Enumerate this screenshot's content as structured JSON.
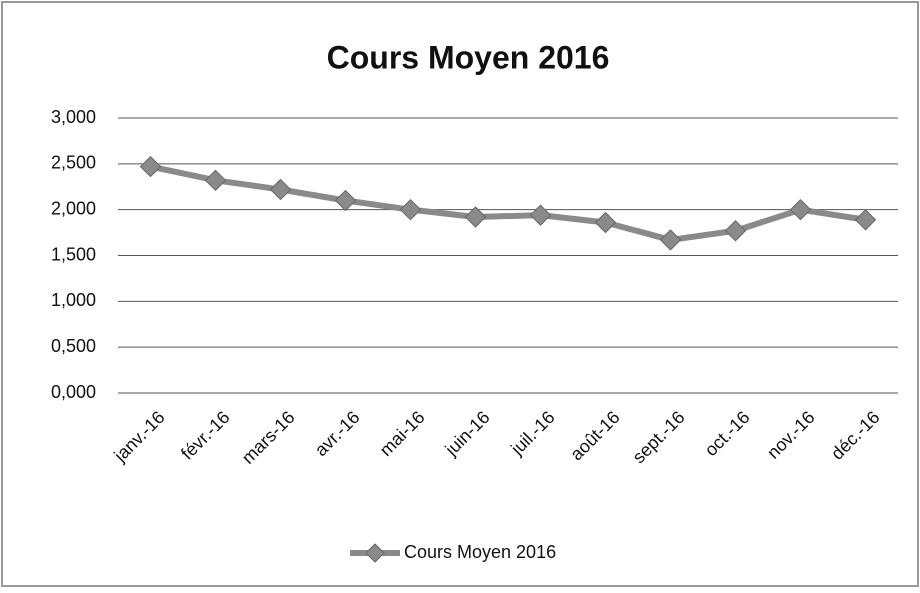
{
  "chart_data": {
    "type": "line",
    "title": "Cours Moyen 2016",
    "categories": [
      "janv.-16",
      "févr.-16",
      "mars-16",
      "avr.-16",
      "mai-16",
      "juin-16",
      "juil.-16",
      "août-16",
      "sept.-16",
      "oct.-16",
      "nov.-16",
      "déc.-16"
    ],
    "series": [
      {
        "name": "Cours Moyen 2016",
        "color": "#8a8a8a",
        "values": [
          2.47,
          2.32,
          2.22,
          2.1,
          2.0,
          1.92,
          1.94,
          1.86,
          1.67,
          1.77,
          2.0,
          1.89
        ]
      }
    ],
    "ylim": [
      0,
      3
    ],
    "yticks": [
      {
        "value": 0,
        "label": "0,000"
      },
      {
        "value": 0.5,
        "label": "0,500"
      },
      {
        "value": 1,
        "label": "1,000"
      },
      {
        "value": 1.5,
        "label": "1,500"
      },
      {
        "value": 2,
        "label": "2,000"
      },
      {
        "value": 2.5,
        "label": "2,500"
      },
      {
        "value": 3,
        "label": "3,000"
      }
    ],
    "grid": true,
    "legend": "bottom"
  }
}
